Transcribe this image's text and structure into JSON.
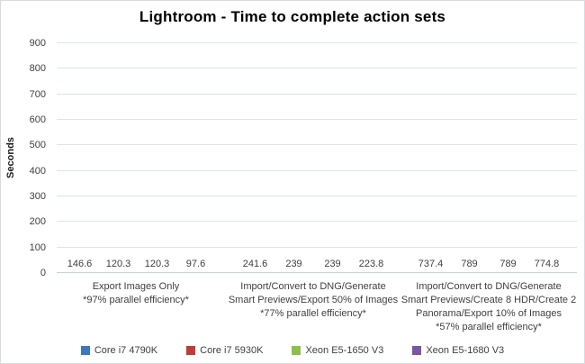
{
  "chart_data": {
    "type": "bar",
    "title": "Lightroom - Time to complete action sets",
    "xlabel": "",
    "ylabel": "Seconds",
    "ylim": [
      0,
      900
    ],
    "y_tick_step": 100,
    "grid": true,
    "legend_position": "bottom",
    "categories": [
      [
        "Export Images Only",
        "*97% parallel efficiency*"
      ],
      [
        "Import/Convert to DNG/Generate",
        "Smart Previews/Export 50% of Images",
        "*77% parallel efficiency*"
      ],
      [
        "Import/Convert to DNG/Generate",
        "Smart Previews/Create 8 HDR/Create 2",
        "Panorama/Export 10% of Images",
        "*57% parallel efficiency*"
      ]
    ],
    "series": [
      {
        "name": "Core i7 4790K",
        "color": "#3c77b9",
        "values": [
          146.6,
          241.6,
          737.4
        ]
      },
      {
        "name": "Core i7 5930K",
        "color": "#be3d3a",
        "values": [
          120.3,
          239,
          789
        ]
      },
      {
        "name": "Xeon E5-1650 V3",
        "color": "#8dbf4c",
        "values": [
          120.3,
          239,
          789
        ]
      },
      {
        "name": "Xeon E5-1680 V3",
        "color": "#7a57a5",
        "values": [
          97.6,
          223.8,
          774.8
        ]
      }
    ],
    "colors": {
      "gridline": "#dce3ea",
      "baseline": "#c9d4e0",
      "text": "#404040",
      "title_text": "#000000"
    }
  }
}
